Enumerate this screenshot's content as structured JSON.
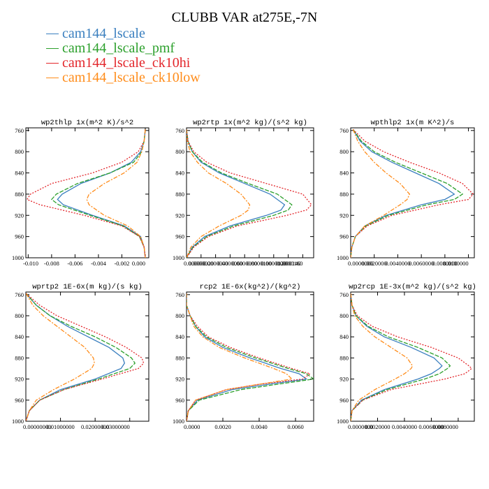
{
  "title": "CLUBB VAR at275E,-7N",
  "series": [
    {
      "name": "cam144_lscale",
      "color": "#3a7fbf",
      "dash": ""
    },
    {
      "name": "cam144_lscale_pmf",
      "color": "#2ca02c",
      "dash": "6 2"
    },
    {
      "name": "cam144_lscale_ck10hi",
      "color": "#e3262b",
      "dash": "2 2"
    },
    {
      "name": "cam144_lscale_ck10low",
      "color": "#ff8c1a",
      "dash": "6 2 2 2"
    }
  ],
  "chart_data": [
    {
      "type": "line",
      "title": "wp2thlp   1x(m^2 K)/s^2",
      "xlim": [
        -0.0102,
        0.0003
      ],
      "ylim": [
        1000,
        755
      ],
      "xticks": [
        -0.01,
        -0.008,
        -0.006,
        -0.004,
        -0.002,
        0.0
      ],
      "xtick_labels": [
        "-0.010",
        "-0.008",
        "-0.006",
        "-0.004",
        "-0.002",
        "0.000"
      ],
      "yticks": [
        760,
        800,
        840,
        880,
        920,
        960,
        1000
      ],
      "y": [
        758,
        780,
        800,
        820,
        840,
        860,
        880,
        890,
        900,
        920,
        940,
        960,
        980,
        1000
      ],
      "series_values": [
        [
          0,
          -0.0001,
          -0.0004,
          -0.0012,
          -0.003,
          -0.0055,
          -0.0071,
          -0.0075,
          -0.007,
          -0.0045,
          -0.0018,
          -0.0004,
          -0.0001,
          0
        ],
        [
          0,
          -0.0001,
          -0.0003,
          -0.001,
          -0.003,
          -0.0058,
          -0.0076,
          -0.008,
          -0.0074,
          -0.0047,
          -0.0019,
          -0.0005,
          -0.0001,
          0
        ],
        [
          0,
          -0.0001,
          -0.0006,
          -0.002,
          -0.0045,
          -0.008,
          -0.0098,
          -0.0101,
          -0.009,
          -0.0052,
          -0.002,
          -0.0005,
          -0.0001,
          0
        ],
        [
          0,
          -0.0001,
          -0.0003,
          -0.0007,
          -0.0018,
          -0.0035,
          -0.0048,
          -0.005,
          -0.0048,
          -0.0035,
          -0.0015,
          -0.0004,
          -0.0001,
          0
        ]
      ]
    },
    {
      "type": "line",
      "title": "wp2rtp   1x(m^2 kg)/(s^2 kg)",
      "xlim": [
        0,
        1.75e-05
      ],
      "ylim": [
        1000,
        755
      ],
      "xticks": [
        0,
        2e-06,
        4e-06,
        6e-06,
        8e-06,
        1e-05,
        1.2e-05,
        1.4e-05,
        1.6e-05
      ],
      "xtick_labels": [
        "0.000000",
        "0.0000020",
        "0.0000040",
        "0.0000060",
        "0.0000080",
        "0.0000100",
        "0.0000120",
        "0.0000140",
        "0.0000160"
      ],
      "yticks": [
        760,
        800,
        840,
        880,
        920,
        960,
        1000
      ],
      "y": [
        758,
        780,
        800,
        820,
        840,
        860,
        880,
        900,
        910,
        920,
        940,
        960,
        980,
        1000
      ],
      "series_values": [
        [
          0,
          2e-07,
          8e-07,
          2e-06,
          4.5e-06,
          8e-06,
          1.15e-05,
          1.35e-05,
          1.3e-05,
          1.1e-05,
          6e-06,
          2.5e-06,
          8e-07,
          0
        ],
        [
          0,
          2e-07,
          8e-07,
          2.2e-06,
          4.8e-06,
          8.5e-06,
          1.25e-05,
          1.45e-05,
          1.4e-05,
          1.2e-05,
          6.5e-06,
          2.8e-06,
          9e-07,
          0
        ],
        [
          0,
          2e-07,
          1e-06,
          2.8e-06,
          6e-06,
          1.1e-05,
          1.6e-05,
          1.72e-05,
          1.65e-05,
          1.38e-05,
          7e-06,
          3e-06,
          1e-06,
          0
        ],
        [
          0,
          1e-07,
          5e-07,
          1.5e-06,
          3e-06,
          5.5e-06,
          7.5e-06,
          8.7e-06,
          8.5e-06,
          7.5e-06,
          4.5e-06,
          2e-06,
          6e-07,
          0
        ]
      ]
    },
    {
      "type": "line",
      "title": "wpthlp2   1x(m K^2)/s",
      "xlim": [
        0,
        0.0105
      ],
      "ylim": [
        1000,
        755
      ],
      "xticks": [
        0,
        0.002,
        0.004,
        0.006,
        0.008,
        0.01
      ],
      "xtick_labels": [
        "0.0000000",
        "0.0020000",
        "0.0040000",
        "0.0060000",
        "0.0080000",
        "0.0100000"
      ],
      "yticks": [
        760,
        800,
        840,
        880,
        920,
        960,
        1000
      ],
      "y": [
        758,
        780,
        800,
        820,
        840,
        860,
        880,
        890,
        900,
        920,
        940,
        960,
        980,
        1000
      ],
      "series_values": [
        [
          0.0002,
          0.0008,
          0.0018,
          0.0035,
          0.0055,
          0.0075,
          0.0088,
          0.008,
          0.006,
          0.003,
          0.0012,
          0.0004,
          0.0001,
          0
        ],
        [
          0.0002,
          0.0009,
          0.002,
          0.0038,
          0.006,
          0.0082,
          0.0095,
          0.0088,
          0.0065,
          0.0032,
          0.0013,
          0.0004,
          0.0001,
          0
        ],
        [
          0.0002,
          0.0012,
          0.0028,
          0.005,
          0.0075,
          0.0095,
          0.0104,
          0.01,
          0.0075,
          0.0035,
          0.0014,
          0.0004,
          0.0001,
          0
        ],
        [
          0.0002,
          0.0006,
          0.0012,
          0.002,
          0.003,
          0.0042,
          0.005,
          0.0048,
          0.0042,
          0.0028,
          0.0012,
          0.0004,
          0.0001,
          0
        ]
      ]
    },
    {
      "type": "line",
      "title": "wprtp2   1E-6x(m kg)/(s kg)",
      "xlim": [
        0,
        3.55e-05
      ],
      "ylim": [
        1000,
        755
      ],
      "xticks": [
        0,
        1e-05,
        2e-05,
        3e-05
      ],
      "xtick_labels": [
        "0.00000000",
        "0.01000000",
        "0.02000000",
        "0.03000000"
      ],
      "yticks": [
        760,
        800,
        840,
        880,
        920,
        960,
        1000
      ],
      "y": [
        758,
        780,
        800,
        820,
        840,
        860,
        880,
        890,
        900,
        920,
        940,
        960,
        980,
        1000
      ],
      "series_values": [
        [
          1e-07,
          3e-06,
          7e-06,
          1.2e-05,
          1.8e-05,
          2.4e-05,
          2.8e-05,
          2.85e-05,
          2.75e-05,
          2e-05,
          1e-05,
          4e-06,
          1e-06,
          0
        ],
        [
          1e-07,
          3e-06,
          7e-06,
          1.3e-05,
          2e-05,
          2.6e-05,
          3.05e-05,
          3.15e-05,
          3e-05,
          2.1e-05,
          1.1e-05,
          4e-06,
          1e-06,
          0
        ],
        [
          1e-07,
          4e-06,
          9e-06,
          1.6e-05,
          2.3e-05,
          2.9e-05,
          3.35e-05,
          3.4e-05,
          3.25e-05,
          2.2e-05,
          1.1e-05,
          4e-06,
          1e-06,
          0
        ],
        [
          1e-07,
          2e-06,
          5e-06,
          9e-06,
          1.3e-05,
          1.7e-05,
          1.95e-05,
          1.98e-05,
          1.9e-05,
          1.4e-05,
          8e-06,
          3e-06,
          1e-06,
          0
        ]
      ]
    },
    {
      "type": "line",
      "title": "rcp2   1E-6x(kg^2)/(kg^2)",
      "xlim": [
        0,
        7e-06
      ],
      "ylim": [
        1000,
        755
      ],
      "xticks": [
        0,
        2e-06,
        4e-06,
        6e-06
      ],
      "xtick_labels": [
        "0.0000",
        "0.0020",
        "0.0040",
        "0.0060"
      ],
      "yticks": [
        760,
        800,
        840,
        880,
        920,
        960,
        1000
      ],
      "y": [
        758,
        780,
        800,
        820,
        840,
        860,
        880,
        900,
        910,
        920,
        930,
        940,
        960,
        980,
        1000
      ],
      "series_values": [
        [
          0,
          0,
          2e-07,
          5e-07,
          1e-06,
          2e-06,
          3.5e-06,
          5.2e-06,
          6.2e-06,
          6.6e-06,
          4.5e-06,
          2.5e-06,
          6e-07,
          1e-07,
          0
        ],
        [
          0,
          0,
          2e-07,
          5e-07,
          1.1e-06,
          2.2e-06,
          3.8e-06,
          5.6e-06,
          6.6e-06,
          7e-06,
          5e-06,
          3e-06,
          7e-07,
          1e-07,
          0
        ],
        [
          0,
          0,
          2e-07,
          6e-07,
          1.2e-06,
          2.4e-06,
          4e-06,
          5.8e-06,
          6.8e-06,
          6.4e-06,
          4e-06,
          2.2e-06,
          5e-07,
          1e-07,
          0
        ],
        [
          0,
          0,
          2e-07,
          4e-07,
          9e-07,
          1.8e-06,
          3.2e-06,
          4.8e-06,
          5.5e-06,
          5.8e-06,
          4e-06,
          2.2e-06,
          5e-07,
          1e-07,
          0
        ]
      ]
    },
    {
      "type": "line",
      "title": "wp2rcp   1E-3x(m^2 kg)/(s^2 kg)",
      "xlim": [
        0,
        9.2e-06
      ],
      "ylim": [
        1000,
        755
      ],
      "xticks": [
        0,
        2e-06,
        4e-06,
        6e-06,
        8e-06
      ],
      "xtick_labels": [
        "0.0000000",
        "0.0020000",
        "0.0040000",
        "0.0060000",
        "0.0080000"
      ],
      "yticks": [
        760,
        800,
        840,
        880,
        920,
        960,
        1000
      ],
      "y": [
        758,
        780,
        800,
        820,
        840,
        860,
        880,
        895,
        900,
        910,
        920,
        940,
        960,
        980,
        1000
      ],
      "series_values": [
        [
          0,
          1e-07,
          4e-07,
          1.2e-06,
          2.5e-06,
          4.5e-06,
          6.2e-06,
          6.8e-06,
          6.6e-06,
          6e-06,
          5e-06,
          2.5e-06,
          8e-07,
          1e-07,
          0
        ],
        [
          0,
          1e-07,
          4e-07,
          1.3e-06,
          2.8e-06,
          5e-06,
          6.8e-06,
          7.4e-06,
          7.2e-06,
          6.6e-06,
          5.5e-06,
          2.7e-06,
          9e-07,
          1e-07,
          0
        ],
        [
          0,
          1e-07,
          5e-07,
          1.6e-06,
          3.5e-06,
          6e-06,
          8e-06,
          8.8e-06,
          9e-06,
          8.5e-06,
          7e-06,
          3e-06,
          9e-07,
          1e-07,
          0
        ],
        [
          0,
          1e-07,
          3e-07,
          9e-07,
          1.8e-06,
          3e-06,
          4.2e-06,
          4.6e-06,
          4.5e-06,
          4e-06,
          3.3e-06,
          1.8e-06,
          6e-07,
          1e-07,
          0
        ]
      ]
    }
  ]
}
